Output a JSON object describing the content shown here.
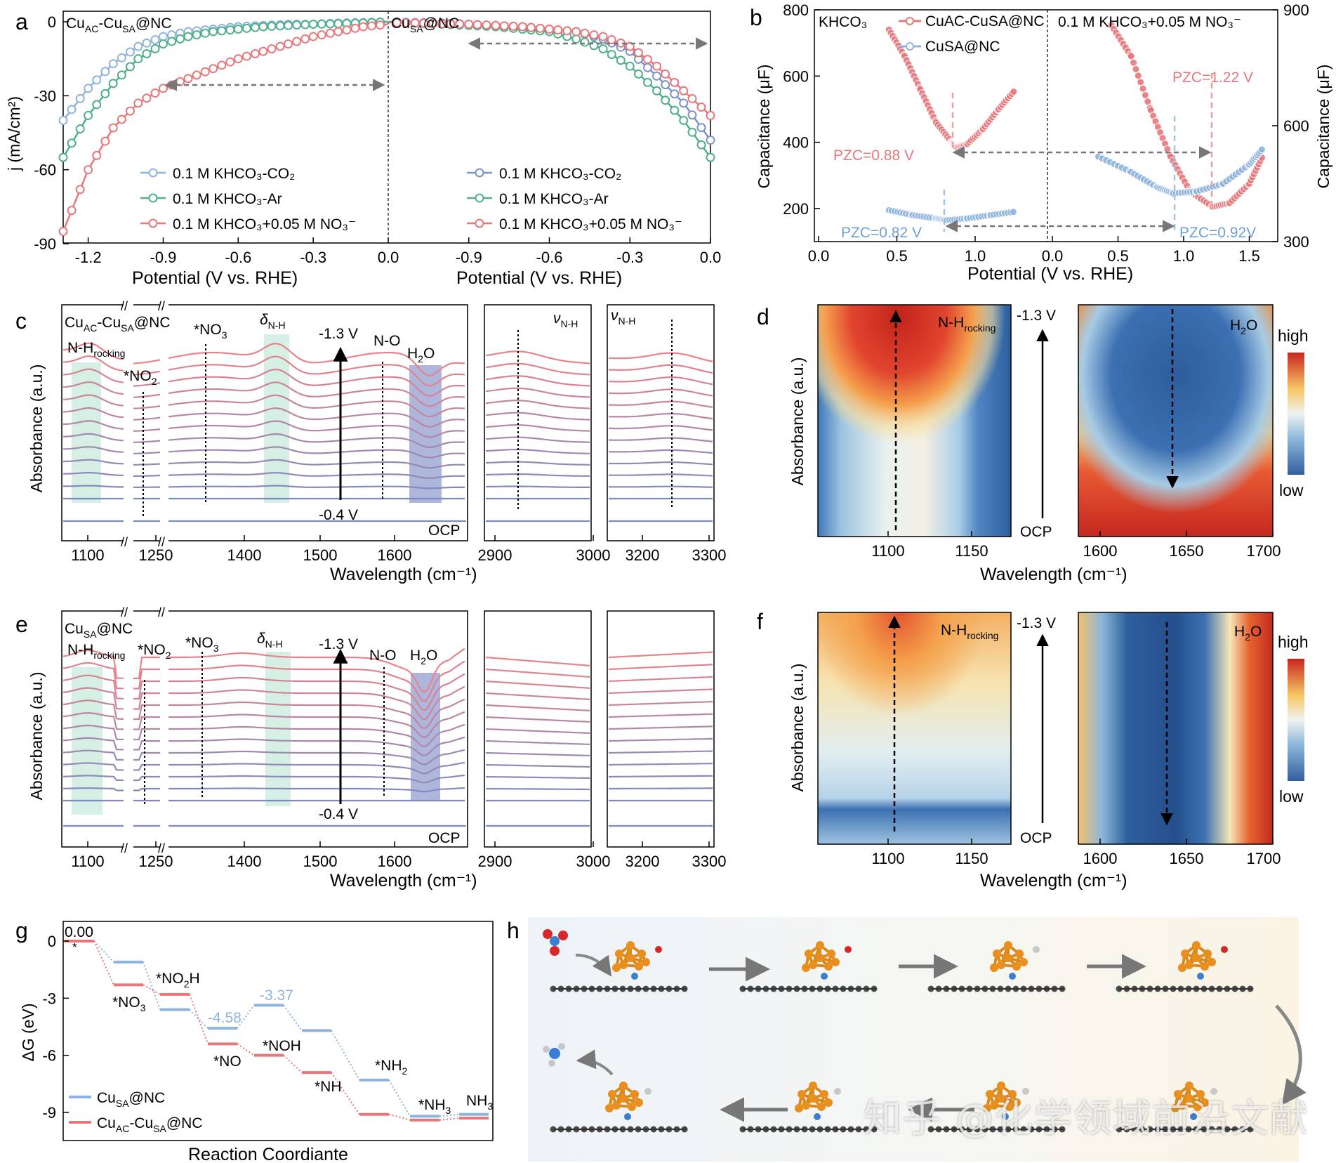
{
  "colors": {
    "pink": "#e8777c",
    "blue": "#8fb4dd",
    "green": "#4fb08a",
    "dblue": "#7b93c8",
    "mixA": "#b08aa8",
    "mixB": "#9aa0c8",
    "pinkDash": "#e8a0a0",
    "blueDash": "#9fc1e4",
    "mintBand": "#d5efe4",
    "lavBand": "#aeb6dc",
    "gray": "#777777"
  },
  "panels": {
    "a": {
      "letter": "a",
      "left_title_main": "Cu",
      "left_title_sub": "AC",
      "left_title_mid": "-Cu",
      "left_title_sub2": "SA",
      "left_title_end": "@NC",
      "right_title": "Cu",
      "right_title_sub": "SA",
      "right_title_end": "@NC",
      "ylabel": "j (mA/cm²)",
      "xlabel": "Potential (V vs. RHE)",
      "yticks": [
        "0",
        "-30",
        "-60",
        "-90"
      ],
      "xticks_left": [
        "-1.2",
        "-0.9",
        "-0.6",
        "-0.3",
        "0.0"
      ],
      "xticks_right": [
        "-0.9",
        "-0.6",
        "-0.3",
        "0.0"
      ],
      "legend": [
        "0.1 M KHCO₃-CO₂",
        "0.1 M KHCO₃-Ar",
        "0.1 M KHCO₃+0.05 M NO₃⁻"
      ]
    },
    "b": {
      "letter": "b",
      "left_label": "KHCO₃",
      "right_label": "0.1 M KHCO₃+0.05 M NO₃⁻",
      "legend": [
        "CuAC-CuSA@NC",
        "CuSA@NC"
      ],
      "ylabel_left": "Capacitance (μF)",
      "ylabel_right": "Capacitance (μF)",
      "xlabel": "Potential (V vs. RHE)",
      "yticks_left": [
        "800",
        "600",
        "400",
        "200"
      ],
      "yticks_right": [
        "900",
        "600",
        "300"
      ],
      "xticks_left": [
        "0.0",
        "0.5",
        "1.0"
      ],
      "xticks_right": [
        "0.0",
        "0.5",
        "1.0",
        "1.5"
      ],
      "pzc": [
        "PZC=0.88 V",
        "PZC=0.82 V",
        "PZC=1.22 V",
        "PZC=0.92V"
      ]
    },
    "c": {
      "letter": "c",
      "sample": "CuAC-CuSA@NC",
      "ylabel": "Absorbance (a.u.)",
      "xlabel": "Wavelength (cm⁻¹)",
      "labels": [
        "N-Hrocking",
        "*NO2",
        "*NO3",
        "δN-H",
        "-1.3 V",
        "N-O",
        "H2O",
        "-0.4 V",
        "OCP",
        "νN-H",
        "νN-H"
      ],
      "xticks": [
        "1100",
        "1250",
        "1400",
        "1500",
        "1600",
        "2900",
        "3000",
        "3200",
        "3300"
      ]
    },
    "d": {
      "letter": "d",
      "ylabel": "Absorbance (a.u.)",
      "xlabel": "Wavelength (cm⁻¹)",
      "left_label": "N-Hrocking",
      "right_label": "H2O",
      "top": "-1.3 V",
      "bottom": "OCP",
      "cb_high": "high",
      "cb_low": "low",
      "xticks_left": [
        "1100",
        "1150"
      ],
      "xticks_right": [
        "1600",
        "1650",
        "1700"
      ]
    },
    "e": {
      "letter": "e",
      "sample": "CuSA@NC",
      "ylabel": "Absorbance (a.u.)",
      "xlabel": "Wavelength (cm⁻¹)",
      "xticks": [
        "1100",
        "1250",
        "1400",
        "1500",
        "1600",
        "2900",
        "3000",
        "3200",
        "3300"
      ]
    },
    "f": {
      "letter": "f",
      "ylabel": "Absorbance (a.u.)",
      "xlabel": "Wavelength (cm⁻¹)",
      "top": "-1.3 V",
      "bottom": "OCP",
      "cb_high": "high",
      "cb_low": "low",
      "xticks_left": [
        "1100",
        "1150"
      ],
      "xticks_right": [
        "1600",
        "1650",
        "1700"
      ]
    },
    "g": {
      "letter": "g",
      "ylabel": "ΔG (eV)",
      "xlabel": "Reaction Coordiante",
      "yticks": [
        "0",
        "-3",
        "-6",
        "-9"
      ],
      "labels": [
        "0.00",
        "*",
        "*NO2H",
        "*NO3",
        "-4.58",
        "-3.37",
        "*NOH",
        "*NO",
        "*NH2",
        "*NH",
        "*NH3",
        "NH3"
      ],
      "legend": [
        "CuSA@NC",
        "CuAC-CuSA@NC"
      ]
    },
    "h": {
      "letter": "h"
    }
  },
  "watermark": "知乎 @化学领域前沿文献",
  "chart_data": [
    {
      "panel": "a",
      "type": "line",
      "series": [
        {
          "name": "0.1 M KHCO3-CO2 (CuAC-CuSA@NC)",
          "x": [
            -1.3,
            -1.2,
            -1.1,
            -1.0,
            -0.9,
            -0.8,
            -0.7,
            -0.6,
            -0.5,
            -0.4,
            -0.3,
            -0.2,
            -0.1,
            0.0
          ],
          "y": [
            -40,
            -27,
            -17,
            -10,
            -6,
            -4,
            -3,
            -2,
            -1.5,
            -1,
            -1,
            -0.5,
            -0.3,
            0
          ]
        },
        {
          "name": "0.1 M KHCO3-Ar (CuAC-CuSA@NC)",
          "x": [
            -1.3,
            -1.2,
            -1.1,
            -1.0,
            -0.9,
            -0.8,
            -0.7,
            -0.6,
            -0.5,
            -0.4,
            -0.3,
            -0.2,
            -0.1,
            0.0
          ],
          "y": [
            -55,
            -38,
            -25,
            -15,
            -9,
            -6,
            -4,
            -3,
            -2,
            -1.5,
            -1,
            -0.8,
            -0.5,
            0
          ]
        },
        {
          "name": "0.1 M KHCO3+0.05 M NO3- (CuAC-CuSA@NC)",
          "x": [
            -1.3,
            -1.2,
            -1.1,
            -1.0,
            -0.9,
            -0.8,
            -0.7,
            -0.6,
            -0.5,
            -0.4,
            -0.3,
            -0.2,
            -0.1,
            0.0
          ],
          "y": [
            -85,
            -60,
            -43,
            -33,
            -27,
            -23,
            -19,
            -15,
            -12,
            -9,
            -6,
            -4,
            -2,
            -1
          ]
        },
        {
          "name": "0.1 M KHCO3-CO2 (CuSA@NC)",
          "x": [
            0.0,
            -0.1,
            -0.2,
            -0.3,
            -0.4,
            -0.5,
            -0.6,
            -0.7,
            -0.8,
            -0.9,
            -1.0,
            -1.1,
            -1.2
          ],
          "y": [
            -48,
            -33,
            -22,
            -12,
            -7,
            -4,
            -3,
            -2,
            -1.5,
            -1,
            -0.5,
            -0.3,
            0
          ]
        },
        {
          "name": "0.1 M KHCO3-Ar (CuSA@NC)",
          "x": [
            0.0,
            -0.1,
            -0.2,
            -0.3,
            -0.4,
            -0.5,
            -0.6,
            -0.7,
            -0.8,
            -0.9,
            -1.0,
            -1.1,
            -1.2
          ],
          "y": [
            -55,
            -40,
            -28,
            -18,
            -11,
            -7,
            -4,
            -3,
            -2,
            -1.5,
            -1,
            -0.5,
            0
          ]
        },
        {
          "name": "0.1 M KHCO3+0.05 M NO3- (CuSA@NC)",
          "x": [
            0.0,
            -0.1,
            -0.2,
            -0.3,
            -0.4,
            -0.5,
            -0.6,
            -0.7,
            -0.8,
            -0.9,
            -1.0,
            -1.1,
            -1.2
          ],
          "y": [
            -38,
            -28,
            -18,
            -10,
            -6,
            -4,
            -3,
            -2,
            -1.5,
            -1,
            -0.8,
            -0.5,
            -0.3
          ]
        }
      ]
    },
    {
      "panel": "b",
      "type": "scatter",
      "series": [
        {
          "name": "CuAC-CuSA@NC KHCO3",
          "x": [
            0.45,
            0.55,
            0.65,
            0.75,
            0.85,
            0.88,
            0.95,
            1.05,
            1.15,
            1.25
          ],
          "y": [
            740,
            660,
            560,
            460,
            400,
            385,
            395,
            440,
            500,
            555
          ]
        },
        {
          "name": "CuSA@NC KHCO3",
          "x": [
            0.45,
            0.6,
            0.75,
            0.82,
            0.95,
            1.1,
            1.25
          ],
          "y": [
            195,
            180,
            170,
            165,
            170,
            180,
            190
          ]
        },
        {
          "name": "CuAC-CuSA@NC NO3",
          "x": [
            0.45,
            0.6,
            0.75,
            0.9,
            1.05,
            1.22,
            1.35,
            1.5,
            1.6
          ],
          "y": [
            860,
            780,
            640,
            520,
            430,
            390,
            400,
            450,
            520
          ]
        },
        {
          "name": "CuSA@NC NO3",
          "x": [
            0.35,
            0.6,
            0.8,
            0.92,
            1.1,
            1.3,
            1.5,
            1.6
          ],
          "y": [
            520,
            480,
            440,
            425,
            430,
            450,
            500,
            540
          ]
        }
      ]
    },
    {
      "panel": "g",
      "type": "line",
      "series": [
        {
          "name": "CuSA@NC",
          "values": [
            0.0,
            -1.1,
            -3.6,
            -4.58,
            -3.37,
            -4.7,
            -7.3,
            -9.2,
            -9.1
          ]
        },
        {
          "name": "CuAC-CuSA@NC",
          "values": [
            0.0,
            -2.3,
            -2.8,
            -5.4,
            -6.0,
            -6.9,
            -9.1,
            -9.4,
            -9.3
          ]
        }
      ]
    }
  ]
}
